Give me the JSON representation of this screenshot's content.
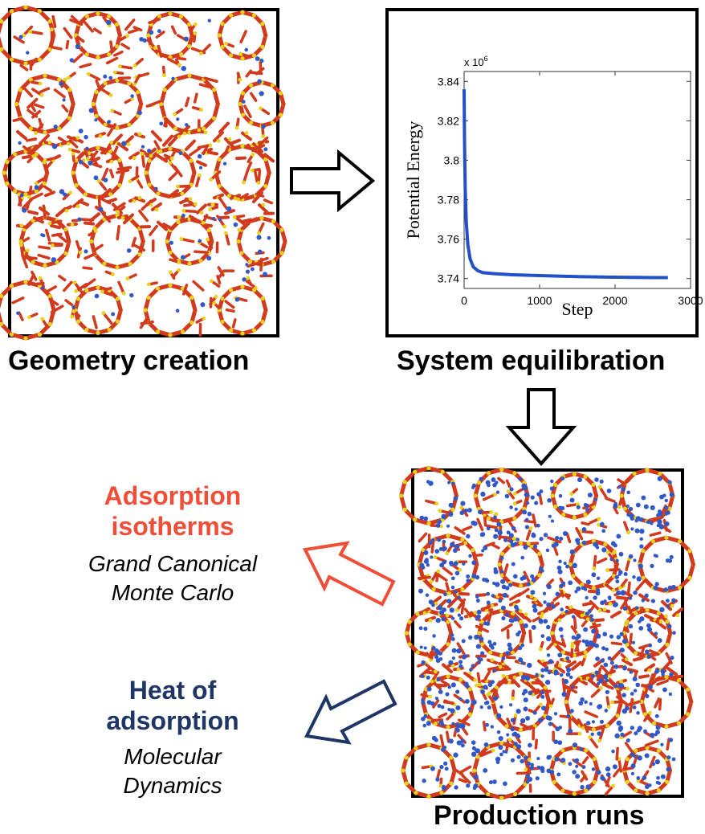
{
  "steps": {
    "geometry": {
      "caption": "Geometry creation"
    },
    "equilibration": {
      "caption": "System equilibration"
    },
    "production": {
      "caption": "Production runs"
    }
  },
  "outputs": {
    "adsorption": {
      "title_line1": "Adsorption",
      "title_line2": "isotherms",
      "method_line1": "Grand Canonical",
      "method_line2": "Monte Carlo",
      "color": "#f04e37"
    },
    "heat": {
      "title_line1": "Heat of",
      "title_line2": "adsorption",
      "method_line1": "Molecular",
      "method_line2": "Dynamics",
      "color": "#1f3566"
    }
  },
  "colors": {
    "framework": "#d23a1e",
    "atom": "#e8d21c",
    "guest": "#3058c8",
    "line": "#2250c8"
  },
  "chart_data": {
    "type": "line",
    "xlabel": "Step",
    "ylabel": "Potential Energy",
    "multiplier": "x 10",
    "multiplier_exp": "6",
    "xlim": [
      0,
      3000
    ],
    "ylim": [
      3.735,
      3.845
    ],
    "xticks": [
      0,
      1000,
      2000,
      3000
    ],
    "xtick_labels": [
      "0",
      "1000",
      "2000",
      "3000"
    ],
    "yticks": [
      3.74,
      3.76,
      3.78,
      3.8,
      3.82,
      3.84
    ],
    "ytick_labels": [
      "3.74",
      "3.76",
      "3.78",
      "3.8",
      "3.82",
      "3.84"
    ],
    "series": [
      {
        "x": [
          0,
          5,
          15,
          30,
          50,
          80,
          120,
          180,
          250,
          400,
          600,
          1000,
          1500,
          2000,
          2500,
          2700
        ],
        "y": [
          3.836,
          3.81,
          3.785,
          3.768,
          3.757,
          3.75,
          3.746,
          3.744,
          3.743,
          3.7425,
          3.742,
          3.7415,
          3.741,
          3.7407,
          3.7405,
          3.7405
        ]
      }
    ]
  }
}
